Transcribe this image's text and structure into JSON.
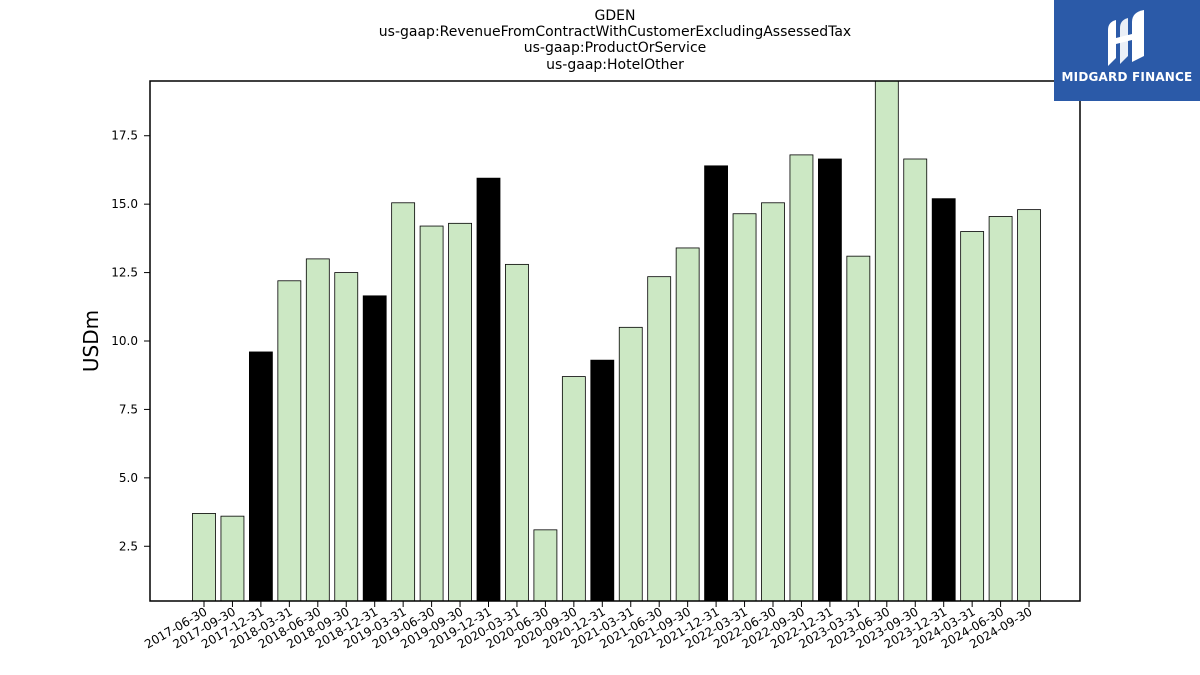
{
  "title_lines": [
    "GDEN",
    "us-gaap:RevenueFromContractWithCustomerExcludingAssessedTax",
    "us-gaap:ProductOrService",
    "us-gaap:HotelOther"
  ],
  "logo": {
    "text": "MIDGARD FINANCE",
    "color": "#2b5aa8"
  },
  "colors": {
    "bar_light": "#cce8c4",
    "bar_dark": "#000000",
    "edge": "#000000"
  },
  "chart_data": {
    "type": "bar",
    "title": "GDEN\nus-gaap:RevenueFromContractWithCustomerExcludingAssessedTax\nus-gaap:ProductOrService\nus-gaap:HotelOther",
    "xlabel": "",
    "ylabel": "USDm",
    "ylim": [
      0.5,
      19.5
    ],
    "yticks": [
      2.5,
      5.0,
      7.5,
      10.0,
      12.5,
      15.0,
      17.5
    ],
    "grid": false,
    "categories": [
      "2017-06-30",
      "2017-09-30",
      "2017-12-31",
      "2018-03-31",
      "2018-06-30",
      "2018-09-30",
      "2018-12-31",
      "2019-03-31",
      "2019-06-30",
      "2019-09-30",
      "2019-12-31",
      "2020-03-31",
      "2020-06-30",
      "2020-09-30",
      "2020-12-31",
      "2021-03-31",
      "2021-06-30",
      "2021-09-30",
      "2021-12-31",
      "2022-03-31",
      "2022-06-30",
      "2022-09-30",
      "2022-12-31",
      "2023-03-31",
      "2023-06-30",
      "2023-09-30",
      "2023-12-31",
      "2024-03-31",
      "2024-06-30",
      "2024-09-30"
    ],
    "values": [
      3.7,
      3.6,
      9.6,
      12.2,
      13.0,
      12.5,
      11.65,
      15.05,
      14.2,
      14.3,
      15.95,
      12.8,
      3.1,
      8.7,
      9.3,
      10.5,
      12.35,
      13.4,
      16.4,
      14.65,
      15.05,
      16.8,
      16.65,
      13.1,
      19.5,
      16.65,
      15.2,
      14.0,
      14.55,
      14.8
    ],
    "highlight": [
      false,
      false,
      true,
      false,
      false,
      false,
      true,
      false,
      false,
      false,
      true,
      false,
      false,
      false,
      true,
      false,
      false,
      false,
      true,
      false,
      false,
      false,
      true,
      false,
      false,
      false,
      true,
      false,
      false,
      false
    ]
  }
}
